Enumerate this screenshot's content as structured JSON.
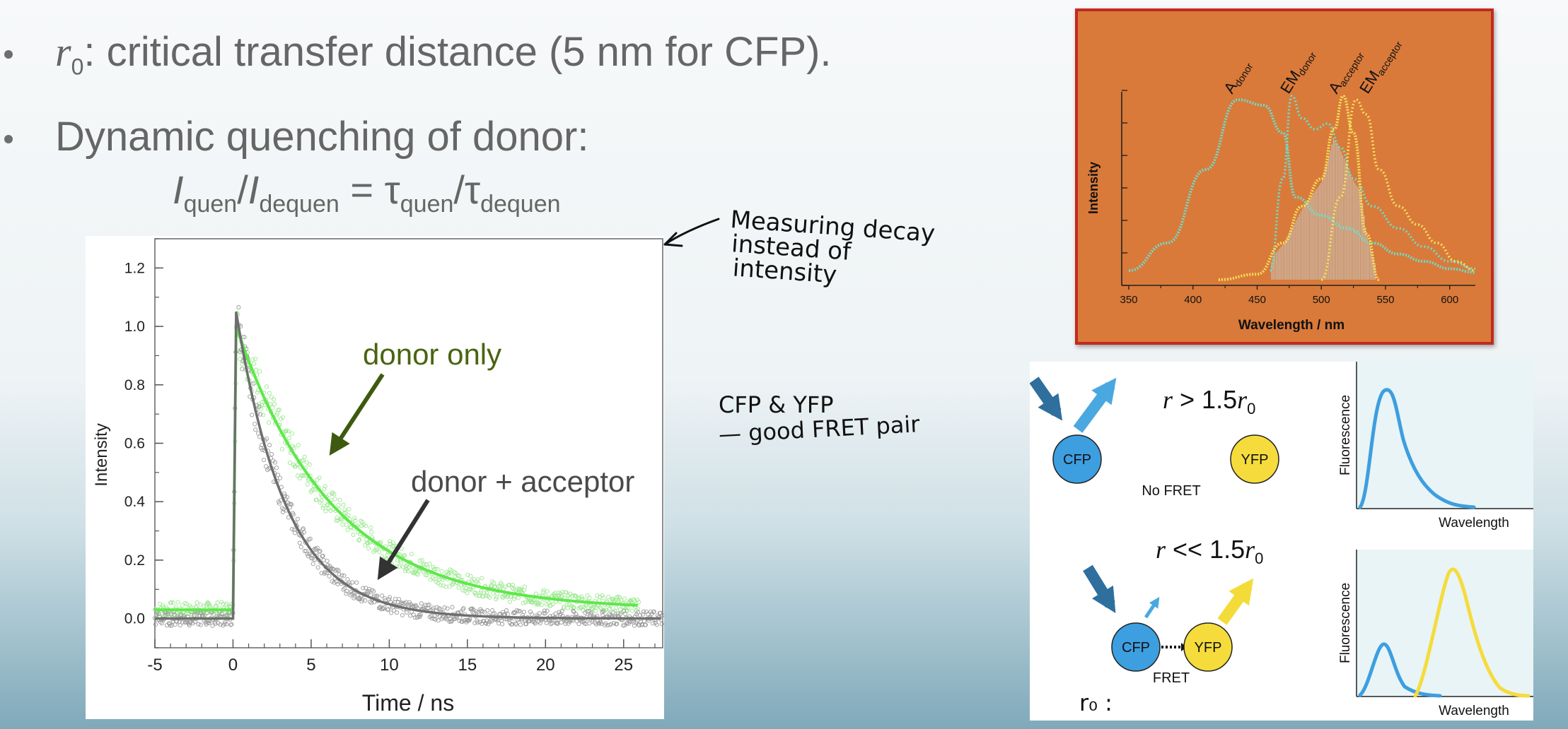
{
  "bullets": {
    "b1": {
      "r": "r",
      "sub": "0",
      "rest": ": critical transfer distance (5 nm for CFP)."
    },
    "b2": "Dynamic quenching of donor:"
  },
  "equation": {
    "i1": "I",
    "s1": "quen",
    "slash1": "/",
    "i2": "I",
    "s2": "dequen",
    "eq": " = ",
    "t1": "τ",
    "s3": "quen",
    "slash2": "/",
    "t2": "τ",
    "s4": "dequen"
  },
  "decay_chart": {
    "xlabel": "Time / ns",
    "ylabel": "Intensity",
    "xticks": [
      "-5",
      "0",
      "5",
      "10",
      "15",
      "20",
      "25"
    ],
    "yticks": [
      "0.0",
      "0.2",
      "0.4",
      "0.6",
      "0.8",
      "1.0",
      "1.2"
    ],
    "label_donor": "donor only",
    "label_both": "donor + acceptor",
    "colors": {
      "donor": "#5ee84a",
      "both": "#757575",
      "donor_label": "#4a6410",
      "arrow_donor": "#3d5a10",
      "arrow_both": "#333333"
    }
  },
  "handwriting": {
    "note1": [
      "Measuring decay",
      "instead of",
      "intensity"
    ],
    "note2": [
      "CFP & YFP",
      "— good FRET pair"
    ],
    "r0": "r₀ :"
  },
  "spectrum_chart": {
    "xlabel": "Wavelength / nm",
    "ylabel": "Intensity",
    "xticks": [
      "350",
      "400",
      "450",
      "500",
      "550",
      "600"
    ],
    "label_adonor": {
      "main": "A",
      "sub": "donor"
    },
    "label_emdonor": {
      "main": "EM",
      "sub": "donor"
    },
    "label_aacc": {
      "main": "A",
      "sub": "acceptor"
    },
    "label_emacc": {
      "main": "EM",
      "sub": "acceptor"
    },
    "colors": {
      "background": "#d97a3a",
      "border": "#c22a1f",
      "donor": "#6fdcc8",
      "acceptor": "#f5e05a"
    }
  },
  "fret_diagram": {
    "top": {
      "cond_r": "r",
      "cond_op": " > 1.5",
      "cond_r0": "r",
      "cond_sub": "0",
      "cfp": "CFP",
      "yfp": "YFP",
      "caption": "No FRET"
    },
    "bottom": {
      "cond_r": "r",
      "cond_op": " << 1.5",
      "cond_r0": "r",
      "cond_sub": "0",
      "cfp": "CFP",
      "yfp": "YFP",
      "caption": "FRET"
    },
    "plot_ylabel": "Fluorescence",
    "plot_xlabel": "Wavelength",
    "colors": {
      "cfp": "#3d9ee0",
      "yfp": "#f5dc3c",
      "arrow_dark": "#2e6f9e",
      "arrow_light": "#4aa8e0",
      "arrow_yellow": "#f3dc3a"
    }
  },
  "chart_data": [
    {
      "type": "line",
      "xlabel": "Time / ns",
      "ylabel": "Intensity",
      "xlim": [
        -5,
        27.5
      ],
      "ylim": [
        -0.1,
        1.3
      ],
      "series": [
        {
          "name": "donor only",
          "x": [
            -5,
            0,
            0.2,
            2,
            5,
            10,
            15,
            20,
            26
          ],
          "values": [
            0.03,
            0.03,
            1.0,
            0.73,
            0.46,
            0.22,
            0.11,
            0.06,
            0.04
          ]
        },
        {
          "name": "donor + acceptor",
          "x": [
            -5,
            0,
            0.2,
            2,
            5,
            10,
            15,
            20,
            27.5
          ],
          "values": [
            0.0,
            0.0,
            1.05,
            0.6,
            0.26,
            0.07,
            0.03,
            0.01,
            0.0
          ]
        }
      ]
    },
    {
      "type": "line",
      "xlabel": "Wavelength / nm",
      "ylabel": "Intensity",
      "xlim": [
        350,
        620
      ],
      "series": [
        {
          "name": "A donor",
          "x": [
            350,
            380,
            410,
            435,
            455,
            470,
            480,
            500,
            520,
            540,
            560,
            580,
            600,
            620
          ],
          "values": [
            0.05,
            0.2,
            0.6,
            0.98,
            0.95,
            0.8,
            0.45,
            0.35,
            0.28,
            0.2,
            0.14,
            0.1,
            0.06,
            0.04
          ]
        },
        {
          "name": "EM donor",
          "x": [
            460,
            470,
            477,
            485,
            495,
            505,
            515,
            525,
            540,
            560,
            580,
            600,
            620
          ],
          "values": [
            0.05,
            0.55,
            1.0,
            0.88,
            0.82,
            0.85,
            0.72,
            0.55,
            0.4,
            0.28,
            0.18,
            0.1,
            0.06
          ]
        },
        {
          "name": "A acceptor",
          "x": [
            420,
            450,
            470,
            485,
            500,
            510,
            517,
            525,
            535,
            545
          ],
          "values": [
            0.0,
            0.03,
            0.2,
            0.4,
            0.55,
            0.82,
            1.0,
            0.8,
            0.25,
            0.0
          ]
        },
        {
          "name": "EM acceptor",
          "x": [
            500,
            515,
            527,
            535,
            545,
            560,
            575,
            590,
            605,
            620
          ],
          "values": [
            0.0,
            0.45,
            0.98,
            0.9,
            0.6,
            0.4,
            0.3,
            0.2,
            0.1,
            0.05
          ]
        }
      ]
    }
  ]
}
